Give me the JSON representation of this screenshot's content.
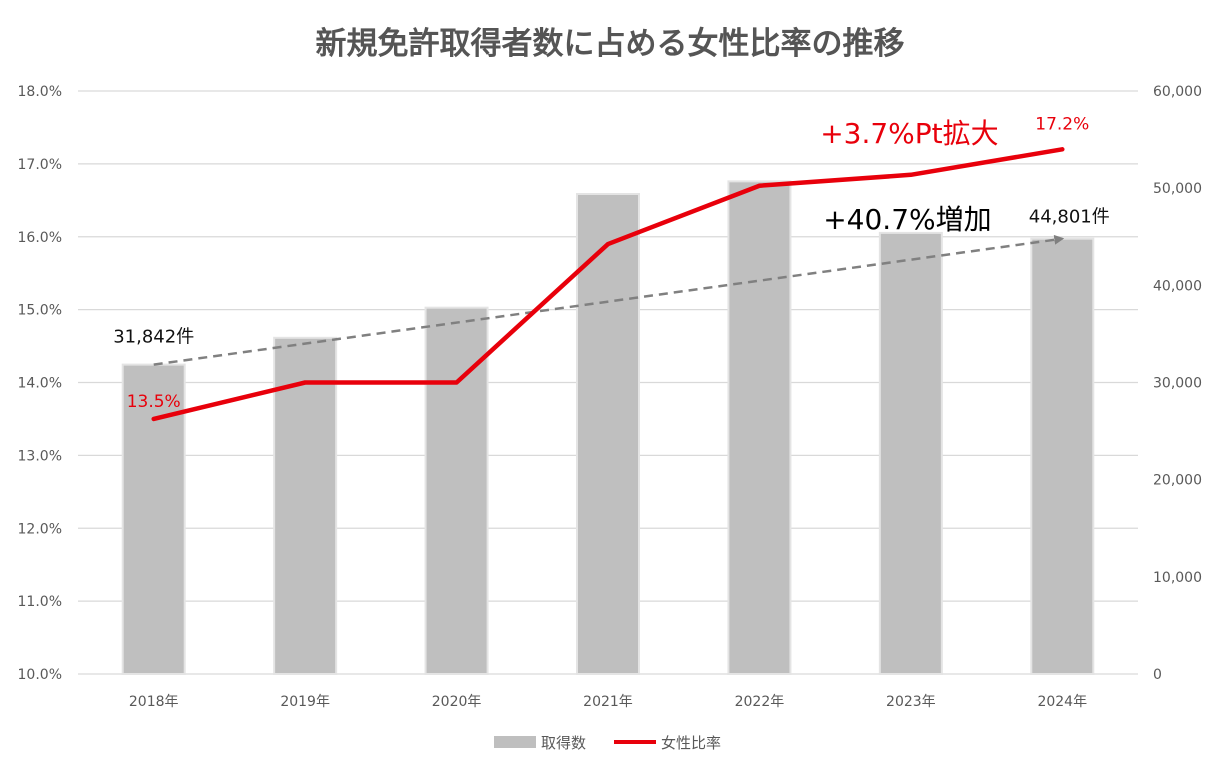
{
  "chart_data": {
    "type": "bar",
    "title": "新規免許取得者数に占める女性比率の推移",
    "categories": [
      "2018年",
      "2019年",
      "2020年",
      "2021年",
      "2022年",
      "2023年",
      "2024年"
    ],
    "series": [
      {
        "name": "取得数",
        "type": "bar",
        "axis": "right",
        "color": "#bfbfbf",
        "values": [
          31842,
          34600,
          37700,
          49400,
          50700,
          45400,
          44801
        ]
      },
      {
        "name": "女性比率",
        "type": "line",
        "axis": "left",
        "color": "#e8000b",
        "values": [
          13.5,
          14.0,
          14.0,
          15.9,
          16.7,
          16.85,
          17.2
        ]
      }
    ],
    "y_left": {
      "min": 10.0,
      "max": 18.0,
      "step": 1.0,
      "ticks": [
        "10.0%",
        "11.0%",
        "12.0%",
        "13.0%",
        "14.0%",
        "15.0%",
        "16.0%",
        "17.0%",
        "18.0%"
      ]
    },
    "y_right": {
      "min": 0,
      "max": 60000,
      "step": 10000,
      "ticks": [
        "0",
        "10,000",
        "20,000",
        "30,000",
        "40,000",
        "50,000",
        "60,000"
      ]
    },
    "trendline": {
      "style": "dashed",
      "color": "#808080",
      "axis": "right",
      "from": {
        "category": "2018年",
        "value": 31842
      },
      "to": {
        "category": "2024年",
        "value": 44801
      }
    },
    "annotations": {
      "start_count": "31,842件",
      "end_count": "44,801件",
      "start_ratio": "13.5%",
      "end_ratio": "17.2%",
      "ratio_change": "+3.7%Pt拡大",
      "count_change": "+40.7%増加"
    },
    "grid": true,
    "legend": {
      "placement": "bottom",
      "items": [
        "取得数",
        "女性比率"
      ]
    }
  },
  "colors": {
    "bar": "#bfbfbf",
    "line": "#e8000b",
    "trend": "#808080",
    "grid": "#d9d9d9",
    "text": "#595959"
  }
}
